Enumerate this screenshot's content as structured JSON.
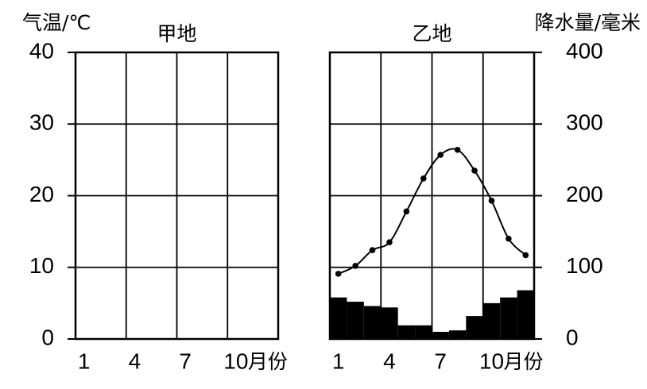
{
  "chart_data": [
    {
      "type": "climate",
      "title": "甲地",
      "y_label": "气温/℃",
      "x_label": "月份",
      "xlim": [
        0.5,
        12.5
      ],
      "xticks": [
        1,
        4,
        7,
        10
      ],
      "xgrid": [
        0.5,
        3.5,
        6.5,
        9.5,
        12.5
      ],
      "ylim": [
        0,
        40
      ],
      "yticks": [
        0,
        10,
        20,
        30,
        40
      ],
      "grid": true
    },
    {
      "type": "climate",
      "title": "乙地",
      "y2_label": "降水量/毫米",
      "x_label": "月份",
      "x": [
        1,
        2,
        3,
        4,
        5,
        6,
        7,
        8,
        9,
        10,
        11,
        12
      ],
      "xlim": [
        0.5,
        12.5
      ],
      "xticks": [
        1,
        4,
        7,
        10
      ],
      "xgrid": [
        0.5,
        3.5,
        6.5,
        9.5,
        12.5
      ],
      "ylim": [
        0,
        40
      ],
      "y2lim": [
        0,
        400
      ],
      "y2ticks": [
        0,
        100,
        200,
        300,
        400
      ],
      "grid": true,
      "series": [
        {
          "type": "bar",
          "axis": "y2",
          "color": "#000000",
          "values": [
            58,
            52,
            46,
            44,
            19,
            19,
            10,
            12,
            32,
            50,
            58,
            68
          ]
        },
        {
          "type": "line",
          "axis": "y",
          "color": "#000000",
          "values": [
            9.1,
            10.2,
            12.4,
            13.5,
            17.8,
            22.4,
            25.7,
            26.4,
            23.5,
            19.3,
            14.0,
            11.7
          ]
        }
      ]
    }
  ]
}
